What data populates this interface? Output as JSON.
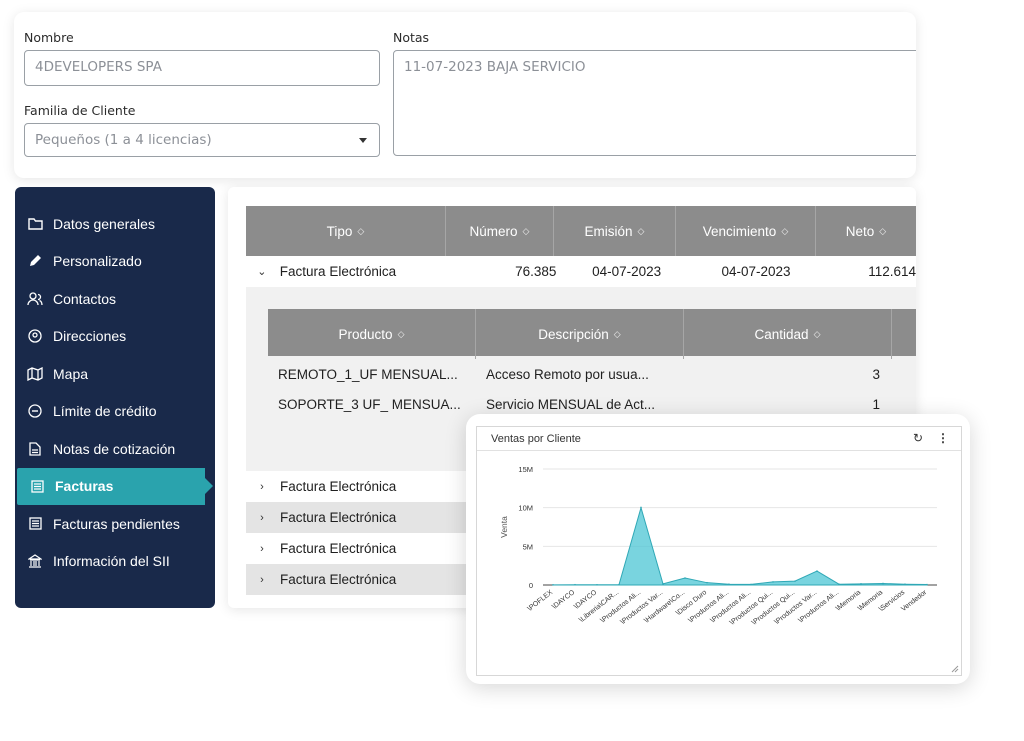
{
  "form": {
    "nombre_label": "Nombre",
    "nombre_value": "4DEVELOPERS SPA",
    "notas_label": "Notas",
    "notas_value": "11-07-2023 BAJA SERVICIO",
    "familia_label": "Familia de Cliente",
    "familia_value": "Pequeños (1 a 4 licencias)"
  },
  "sidebar": {
    "items": [
      {
        "label": "Datos generales",
        "icon": "folder-icon"
      },
      {
        "label": "Personalizado",
        "icon": "pencil-icon"
      },
      {
        "label": "Contactos",
        "icon": "contacts-icon"
      },
      {
        "label": "Direcciones",
        "icon": "location-icon"
      },
      {
        "label": "Mapa",
        "icon": "map-icon"
      },
      {
        "label": "Límite de crédito",
        "icon": "minus-circle-icon"
      },
      {
        "label": "Notas de cotización",
        "icon": "document-icon"
      },
      {
        "label": "Facturas",
        "icon": "list-icon",
        "active": true
      },
      {
        "label": "Facturas pendientes",
        "icon": "list-icon"
      },
      {
        "label": "Información del SII",
        "icon": "bank-icon"
      }
    ]
  },
  "invoices": {
    "columns": [
      "Tipo",
      "Número",
      "Emisión",
      "Vencimiento",
      "Neto"
    ],
    "expanded_row": {
      "tipo": "Factura Electrónica",
      "numero": "76.385",
      "emision": "04-07-2023",
      "vencimiento": "04-07-2023",
      "neto": "112.614"
    },
    "detail": {
      "columns": [
        "Producto",
        "Descripción",
        "Cantidad"
      ],
      "rows": [
        {
          "producto": "REMOTO_1_UF MENSUAL...",
          "descripcion": "Acceso Remoto por usua...",
          "cantidad": "3"
        },
        {
          "producto": "SOPORTE_3 UF_ MENSUA...",
          "descripcion": "Servicio MENSUAL de Act...",
          "cantidad": "1"
        }
      ]
    },
    "collapsed_rows": [
      "Factura Electrónica",
      "Factura Electrónica",
      "Factura Electrónica",
      "Factura Electrónica"
    ]
  },
  "chart_widget": {
    "title": "Ventas por Cliente",
    "refresh_icon": "refresh-icon",
    "menu_icon": "kebab-menu-icon"
  },
  "chart_data": {
    "type": "area",
    "title": "Ventas por Cliente",
    "ylabel": "Venta",
    "xlabel": "",
    "ylim": [
      0,
      15000000
    ],
    "y_ticks": [
      "0",
      "5M",
      "10M",
      "15M"
    ],
    "y_tick_values": [
      0,
      5000000,
      10000000,
      15000000
    ],
    "categories": [
      "\\POFLEX",
      "\\DAYCO",
      "\\DAYCO",
      "\\Libreria\\CAR...",
      "\\Productos Ali...",
      "\\Productos Var...",
      "\\Hardware\\Co...",
      "\\Disco Duro",
      "\\Productos Ali...",
      "\\Productos Ali...",
      "\\Productos Qui...",
      "\\Productos Qui...",
      "\\Productos Var...",
      "\\Productos Ali...",
      "\\Memoria",
      "\\Memoria",
      "\\Servicios",
      "Vendedor"
    ],
    "values": [
      20000,
      40000,
      30000,
      50000,
      10000000,
      150000,
      900000,
      300000,
      100000,
      80000,
      400000,
      500000,
      1800000,
      100000,
      150000,
      200000,
      100000,
      60000
    ],
    "grid": true,
    "color": "#4cc6d4"
  }
}
